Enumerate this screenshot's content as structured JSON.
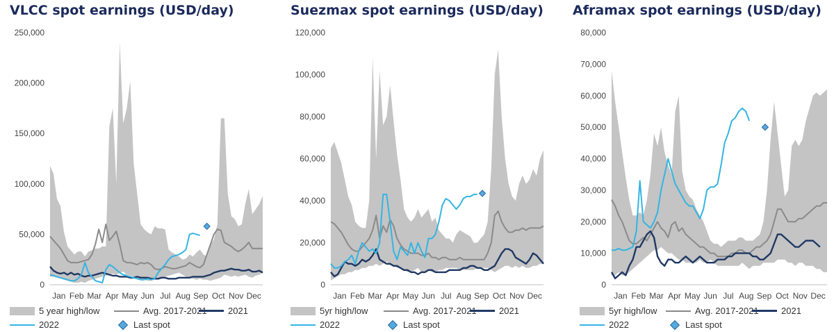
{
  "colors": {
    "band": "#c4c4c4",
    "avg": "#8a8a8a",
    "y2021": "#1f3864",
    "y2022": "#33b4e3",
    "last_spot": "#55aadd",
    "title": "#1b2a5c"
  },
  "chart_data": [
    {
      "type": "line",
      "title": "VLCC spot earnings (USD/day)",
      "ylim": [
        0,
        250000
      ],
      "yticks": [
        "0",
        "50,000",
        "100,000",
        "150,000",
        "200,000",
        "250,000"
      ],
      "months": [
        "Jan",
        "Feb",
        "Mar",
        "Apr",
        "May",
        "Jun",
        "Jul",
        "Aug",
        "Sep",
        "Oct",
        "Nov",
        "Dec"
      ],
      "legend": [
        "5 year high/low",
        "Avg. 2017-2021",
        "2021",
        "2022",
        "Last spot"
      ],
      "band_high": [
        118000,
        110000,
        85000,
        78000,
        52000,
        38000,
        34000,
        30000,
        33000,
        33000,
        28000,
        33000,
        34000,
        36000,
        36000,
        38000,
        38000,
        157000,
        175000,
        100000,
        240000,
        160000,
        175000,
        202000,
        120000,
        90000,
        60000,
        55000,
        52000,
        50000,
        58000,
        56000,
        56000,
        55000,
        35000,
        32000,
        30000,
        28000,
        25000,
        26000,
        30000,
        28000,
        32000,
        35000,
        30000,
        28000,
        40000,
        45000,
        60000,
        165000,
        165000,
        90000,
        68000,
        65000,
        58000,
        60000,
        80000,
        95000,
        70000,
        75000,
        80000,
        88000
      ],
      "band_low": [
        8000,
        8000,
        7000,
        6000,
        5000,
        4000,
        3000,
        2000,
        2000,
        3000,
        2000,
        4000,
        5000,
        6000,
        7000,
        8000,
        9000,
        10000,
        11000,
        10000,
        12000,
        13000,
        10000,
        9000,
        8000,
        7000,
        5000,
        5000,
        4000,
        4000,
        5000,
        6000,
        7000,
        8000,
        9000,
        10000,
        11000,
        12000,
        10000,
        8000,
        7000,
        6000,
        5000,
        6000,
        5000,
        5000,
        4000,
        5000,
        6000,
        7000,
        10000,
        9000,
        8000,
        9000,
        8000,
        9000,
        10000,
        8000,
        7000,
        9000,
        10000,
        12000
      ],
      "avg": [
        48000,
        44000,
        40000,
        36000,
        30000,
        24000,
        22000,
        22000,
        22000,
        23000,
        24000,
        25000,
        30000,
        40000,
        55000,
        42000,
        60000,
        44000,
        48000,
        53000,
        40000,
        24000,
        22000,
        22000,
        21000,
        20000,
        22000,
        21000,
        22000,
        20000,
        16000,
        15000,
        16000,
        18000,
        17000,
        16000,
        16000,
        17000,
        18000,
        19000,
        22000,
        20000,
        18000,
        17000,
        20000,
        30000,
        40000,
        50000,
        55000,
        54000,
        42000,
        40000,
        38000,
        35000,
        33000,
        35000,
        38000,
        42000,
        36000,
        36000,
        36000,
        36000
      ],
      "y2021": [
        18000,
        14000,
        12000,
        11000,
        12000,
        10000,
        12000,
        10000,
        11000,
        9000,
        8000,
        9000,
        9000,
        10000,
        11000,
        12000,
        11000,
        10000,
        9000,
        9000,
        8000,
        8000,
        8000,
        7000,
        7000,
        8000,
        7000,
        7000,
        7000,
        6000,
        6000,
        6000,
        7000,
        7000,
        6000,
        6000,
        6000,
        7000,
        7000,
        7000,
        7000,
        8000,
        8000,
        8000,
        8000,
        9000,
        10000,
        12000,
        13000,
        14000,
        14000,
        15000,
        16000,
        15000,
        15000,
        14000,
        14000,
        15000,
        13000,
        13000,
        14000,
        12000
      ],
      "y2022": [
        10000,
        9000,
        8000,
        7000,
        6000,
        5000,
        4000,
        4000,
        6000,
        10000,
        22000,
        12000,
        8000,
        4000,
        3000,
        2000,
        15000,
        20000,
        18000,
        15000,
        12000,
        10000,
        9000,
        8000,
        7000,
        6000,
        5000,
        5000,
        6000,
        5000,
        6000,
        12000,
        16000,
        20000,
        25000,
        28000,
        29000,
        30000,
        32000,
        35000,
        50000,
        51000,
        50000,
        49000
      ],
      "last_spot": {
        "x_month": 8.35,
        "value": 58000
      }
    },
    {
      "type": "line",
      "title": "Suezmax spot earnings (USD/day)",
      "ylim": [
        0,
        120000
      ],
      "yticks": [
        "0",
        "20,000",
        "40,000",
        "60,000",
        "80,000",
        "100,000",
        "120,000"
      ],
      "months": [
        "Jan",
        "Feb",
        "Mar",
        "Apr",
        "May",
        "Jun",
        "Jul",
        "Aug",
        "Sep",
        "Oct",
        "Nov",
        "Dec"
      ],
      "legend": [
        "5yr high/low",
        "Avg. 2017-2021",
        "2021",
        "2022",
        "Last spot"
      ],
      "band_high": [
        65000,
        68000,
        63000,
        58000,
        50000,
        42000,
        38000,
        30000,
        28000,
        27000,
        27000,
        40000,
        108000,
        60000,
        102000,
        76000,
        80000,
        95000,
        78000,
        62000,
        50000,
        36000,
        32000,
        30000,
        32000,
        36000,
        32000,
        34000,
        36000,
        30000,
        32000,
        26000,
        24000,
        22000,
        22000,
        20000,
        24000,
        26000,
        25000,
        24000,
        23000,
        20000,
        20000,
        22000,
        24000,
        30000,
        55000,
        100000,
        112000,
        80000,
        60000,
        48000,
        42000,
        40000,
        48000,
        52000,
        48000,
        50000,
        55000,
        52000,
        60000,
        64000
      ],
      "band_low": [
        2000,
        3000,
        4000,
        5000,
        5000,
        6000,
        6000,
        7000,
        7000,
        8000,
        8000,
        9000,
        9000,
        10000,
        9000,
        10000,
        11000,
        10000,
        9000,
        8000,
        8000,
        7000,
        6000,
        6000,
        7000,
        8000,
        6000,
        6000,
        7000,
        6000,
        6000,
        7000,
        7000,
        8000,
        8000,
        8000,
        8000,
        7000,
        7000,
        7000,
        7000,
        7000,
        8000,
        8000,
        8000,
        8000,
        7000,
        6000,
        7000,
        8000,
        9000,
        9000,
        8000,
        9000,
        8000,
        9000,
        8000,
        8000,
        9000,
        9000,
        10000,
        10000
      ],
      "avg": [
        30000,
        29000,
        27000,
        25000,
        22000,
        19000,
        17000,
        16000,
        16000,
        18000,
        20000,
        22000,
        26000,
        33000,
        22000,
        28000,
        25000,
        31000,
        28000,
        22000,
        19000,
        17000,
        16000,
        15000,
        15000,
        15000,
        14000,
        14000,
        15000,
        13000,
        13000,
        12000,
        13000,
        13000,
        12000,
        12000,
        12000,
        13000,
        12000,
        12000,
        12000,
        12000,
        12000,
        12000,
        12000,
        15000,
        20000,
        33000,
        35000,
        30000,
        27000,
        25000,
        25000,
        26000,
        26000,
        27000,
        26000,
        27000,
        27000,
        27000,
        27000,
        28000
      ],
      "y2021": [
        6000,
        4000,
        5000,
        8000,
        11000,
        10000,
        10000,
        9000,
        10000,
        12000,
        11000,
        12000,
        14000,
        17000,
        12000,
        11000,
        10000,
        10000,
        9000,
        9000,
        8000,
        7000,
        7000,
        6000,
        6000,
        5000,
        6000,
        6000,
        7000,
        7000,
        6000,
        6000,
        6000,
        6000,
        7000,
        7000,
        7000,
        7000,
        8000,
        8000,
        9000,
        9000,
        8000,
        8000,
        7000,
        7000,
        8000,
        9000,
        12000,
        15000,
        17000,
        17000,
        16000,
        13000,
        12000,
        11000,
        10000,
        12000,
        15000,
        14000,
        12000,
        10000
      ],
      "y2022": [
        10000,
        8000,
        8000,
        9000,
        11000,
        12000,
        14000,
        10000,
        16000,
        20000,
        18000,
        16000,
        17000,
        15000,
        20000,
        43000,
        43000,
        30000,
        16000,
        12000,
        18000,
        16000,
        14000,
        20000,
        15000,
        20000,
        16000,
        13000,
        22000,
        22000,
        24000,
        30000,
        38000,
        41000,
        40000,
        38000,
        36000,
        38000,
        41000,
        42000,
        42000,
        43000,
        43000
      ],
      "last_spot": {
        "x_month": 8.05,
        "value": 43500
      }
    },
    {
      "type": "line",
      "title": "Aframax spot earnings (USD/day)",
      "ylim": [
        0,
        80000
      ],
      "yticks": [
        "0",
        "10,000",
        "20,000",
        "30,000",
        "40,000",
        "50,000",
        "60,000",
        "70,000",
        "80,000"
      ],
      "months": [
        "Jan",
        "Feb",
        "Mar",
        "Apr",
        "May",
        "Jun",
        "Jul",
        "Aug",
        "Sep",
        "Oct",
        "Nov",
        "Dec"
      ],
      "legend": [
        "5yr high/low",
        "Avg. 2017-2021",
        "2021",
        "2022",
        "Last spot"
      ],
      "band_high": [
        68000,
        58000,
        50000,
        42000,
        34000,
        27000,
        22000,
        22000,
        23000,
        22000,
        27000,
        35000,
        48000,
        44000,
        50000,
        42000,
        38000,
        35000,
        55000,
        60000,
        36000,
        30000,
        28000,
        27000,
        24000,
        22000,
        20000,
        17000,
        14000,
        13000,
        13000,
        12000,
        13000,
        14000,
        14000,
        14000,
        15000,
        15000,
        14000,
        14000,
        14000,
        15000,
        16000,
        20000,
        30000,
        46000,
        58000,
        48000,
        38000,
        28000,
        30000,
        44000,
        46000,
        44000,
        46000,
        52000,
        56000,
        60000,
        61000,
        60000,
        61000,
        62000
      ],
      "band_low": [
        3000,
        3000,
        4000,
        3000,
        3000,
        4000,
        5000,
        6000,
        7000,
        8000,
        9000,
        10000,
        11000,
        11000,
        12000,
        11000,
        10000,
        10000,
        9000,
        8000,
        8000,
        7000,
        7000,
        7000,
        7000,
        8000,
        7000,
        7000,
        8000,
        7000,
        6000,
        6000,
        6000,
        6000,
        6000,
        6000,
        6000,
        7000,
        6000,
        5000,
        6000,
        6000,
        6000,
        7000,
        7000,
        7000,
        7000,
        8000,
        8000,
        8000,
        7000,
        7000,
        6000,
        7000,
        7000,
        6000,
        6000,
        6000,
        5000,
        5000,
        4000,
        4000
      ],
      "avg": [
        27000,
        25000,
        22000,
        20000,
        17000,
        14000,
        13000,
        13000,
        14000,
        15000,
        14000,
        16000,
        18000,
        20000,
        18000,
        17000,
        15000,
        19000,
        20000,
        17000,
        18000,
        16000,
        15000,
        14000,
        13000,
        12000,
        12000,
        11000,
        10000,
        10000,
        9000,
        9000,
        9000,
        9000,
        10000,
        10000,
        11000,
        11000,
        10000,
        10000,
        11000,
        12000,
        12000,
        13000,
        14000,
        16000,
        20000,
        24000,
        24000,
        22000,
        20000,
        20000,
        20000,
        21000,
        21000,
        22000,
        23000,
        24000,
        25000,
        25000,
        26000,
        26000
      ],
      "y2021": [
        4000,
        2000,
        3000,
        4000,
        3000,
        6000,
        8000,
        12000,
        12000,
        14000,
        16000,
        17000,
        15000,
        9000,
        7000,
        6000,
        8000,
        8000,
        7000,
        7000,
        8000,
        9000,
        8000,
        7000,
        8000,
        9000,
        8000,
        7000,
        7000,
        7000,
        8000,
        8000,
        8000,
        9000,
        9000,
        10000,
        10000,
        10000,
        10000,
        10000,
        9000,
        9000,
        8000,
        8000,
        9000,
        10000,
        13000,
        16000,
        16000,
        15000,
        14000,
        13000,
        12000,
        12000,
        13000,
        14000,
        14000,
        14000,
        13000,
        12000
      ],
      "y2022": [
        11000,
        11000,
        11500,
        11000,
        11000,
        11500,
        12000,
        17000,
        33000,
        20000,
        19000,
        18000,
        20000,
        23000,
        30000,
        35000,
        40000,
        36000,
        32000,
        30000,
        28000,
        26000,
        25000,
        25000,
        23000,
        21000,
        24000,
        30000,
        31000,
        31000,
        32000,
        38000,
        45000,
        48000,
        52000,
        53000,
        55000,
        56000,
        55000,
        52000
      ],
      "last_spot": {
        "x_month": 8.05,
        "value": 50000
      }
    }
  ]
}
